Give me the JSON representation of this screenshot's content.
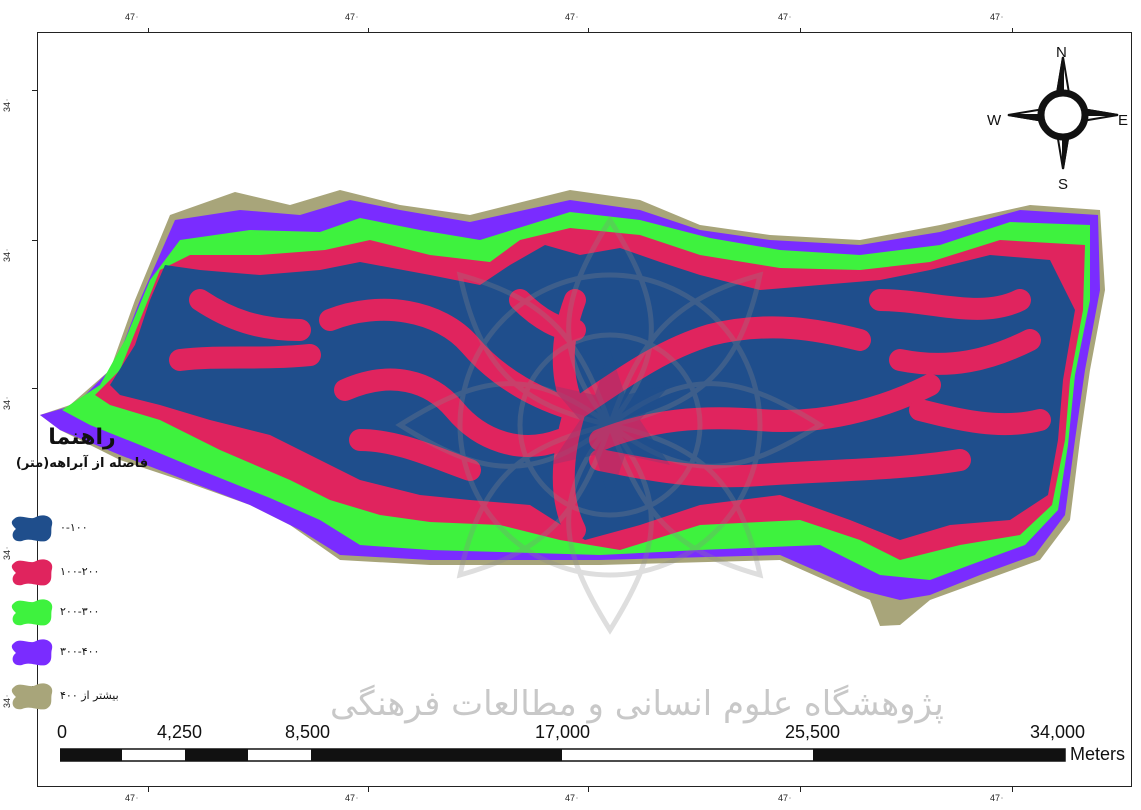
{
  "legend": {
    "title": "راهنما",
    "subtitle": "فاصله از آبراهه(متر)",
    "items": [
      {
        "label": "۰-۱۰۰",
        "color": "#1f4e8c"
      },
      {
        "label": "۱۰۰-۲۰۰",
        "color": "#e0245e"
      },
      {
        "label": "۲۰۰-۳۰۰",
        "color": "#3ef23e"
      },
      {
        "label": "۳۰۰-۴۰۰",
        "color": "#7a2cff"
      },
      {
        "label": "بیشتر از ۴۰۰",
        "color": "#a8a57a"
      }
    ]
  },
  "scalebar": {
    "labels": [
      "0",
      "4,250",
      "8,500",
      "17,000",
      "25,500",
      "34,000"
    ],
    "unit": "Meters"
  },
  "compass": {
    "n": "N",
    "s": "S",
    "e": "E",
    "w": "W"
  },
  "grid": {
    "top": [
      "47",
      "47",
      "47",
      "47",
      "47"
    ],
    "bottom": [
      "47",
      "47",
      "47",
      "47",
      "47"
    ],
    "left": [
      "34",
      "34",
      "34",
      "34",
      "34"
    ]
  },
  "watermark": {
    "text": "پژوهشگاه علوم انسانی و مطالعات فرهنگی"
  }
}
